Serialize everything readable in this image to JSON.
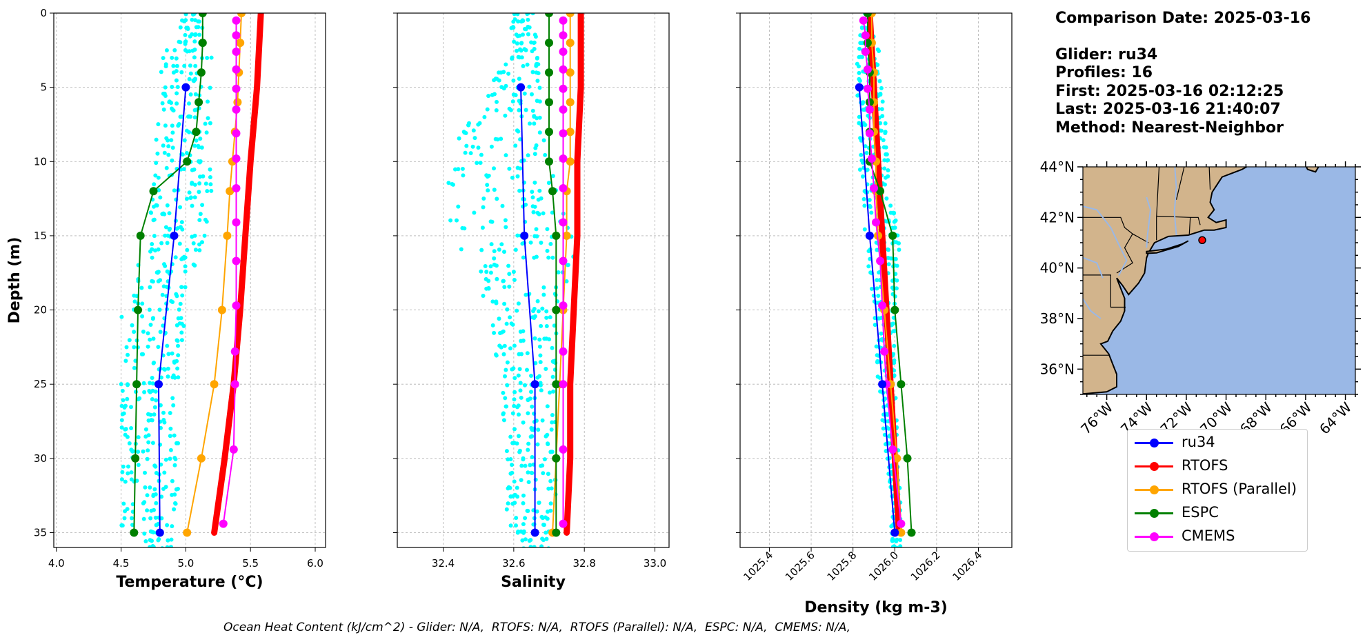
{
  "chart_data": [
    {
      "type": "line",
      "xlabel": "Temperature (°C)",
      "ylabel": "Depth (m)",
      "xlim": [
        3.98,
        6.08
      ],
      "ylim": [
        36,
        0
      ],
      "xticks": [
        "4.0",
        "4.5",
        "5.0",
        "5.5",
        "6.0"
      ],
      "yticks": [
        "0",
        "5",
        "10",
        "15",
        "20",
        "25",
        "30",
        "35"
      ],
      "grid": true,
      "glider_scatter": {
        "color": "#00ffff",
        "ranges": [
          {
            "depth": 0,
            "min": 4.98,
            "max": 5.1
          },
          {
            "depth": 3,
            "min": 4.82,
            "max": 5.2
          },
          {
            "depth": 6,
            "min": 4.78,
            "max": 5.2
          },
          {
            "depth": 10,
            "min": 4.75,
            "max": 5.2
          },
          {
            "depth": 14,
            "min": 4.72,
            "max": 5.2
          },
          {
            "depth": 18,
            "min": 4.6,
            "max": 5.05
          },
          {
            "depth": 20,
            "min": 4.5,
            "max": 5.0
          },
          {
            "depth": 25,
            "min": 4.5,
            "max": 4.95
          },
          {
            "depth": 30,
            "min": 4.5,
            "max": 4.95
          },
          {
            "depth": 34.5,
            "min": 4.5,
            "max": 4.93
          },
          {
            "depth": 36,
            "min": 4.7,
            "max": 4.9
          }
        ]
      },
      "series": [
        {
          "name": "RTOFS",
          "color": "#ff0000",
          "width": 9,
          "marker": false,
          "depth": [
            0,
            5,
            10,
            15,
            20,
            25,
            30,
            35
          ],
          "values": [
            5.58,
            5.55,
            5.5,
            5.46,
            5.42,
            5.37,
            5.3,
            5.22
          ]
        },
        {
          "name": "RTOFS (Parallel)",
          "color": "#ffa500",
          "width": 2,
          "marker": true,
          "depth": [
            0,
            2,
            4,
            6,
            8,
            10,
            12,
            15,
            20,
            25,
            30,
            35
          ],
          "values": [
            5.43,
            5.42,
            5.41,
            5.4,
            5.38,
            5.36,
            5.34,
            5.32,
            5.28,
            5.22,
            5.12,
            5.01
          ]
        },
        {
          "name": "ESPC",
          "color": "#008000",
          "width": 2,
          "marker": true,
          "depth": [
            0,
            2,
            4,
            6,
            8,
            10,
            12,
            15,
            20,
            25,
            30,
            35
          ],
          "values": [
            5.13,
            5.13,
            5.12,
            5.1,
            5.08,
            5.01,
            4.75,
            4.65,
            4.63,
            4.62,
            4.61,
            4.6
          ]
        },
        {
          "name": "CMEMS",
          "color": "#ff00ff",
          "width": 2,
          "marker": true,
          "depth": [
            0.5,
            1.5,
            2.6,
            3.8,
            5.1,
            6.5,
            8.1,
            9.8,
            11.8,
            14.1,
            16.7,
            19.7,
            22.8,
            25.0,
            29.4,
            34.4
          ],
          "values": [
            5.39,
            5.39,
            5.39,
            5.39,
            5.39,
            5.39,
            5.39,
            5.39,
            5.39,
            5.39,
            5.39,
            5.39,
            5.38,
            5.38,
            5.37,
            5.29
          ]
        },
        {
          "name": "ru34",
          "color": "#0000ff",
          "width": 2,
          "marker": true,
          "depth": [
            5,
            15,
            25,
            35
          ],
          "values": [
            5.0,
            4.91,
            4.79,
            4.8
          ]
        }
      ]
    },
    {
      "type": "line",
      "xlabel": "Salinity",
      "ylabel": "",
      "xlim": [
        32.27,
        33.04
      ],
      "ylim": [
        36,
        0
      ],
      "xticks": [
        "32.4",
        "32.6",
        "32.8",
        "33.0"
      ],
      "grid": true,
      "glider_scatter": {
        "color": "#00ffff",
        "ranges": [
          {
            "depth": 0,
            "min": 32.6,
            "max": 32.66
          },
          {
            "depth": 3,
            "min": 32.58,
            "max": 32.67
          },
          {
            "depth": 8,
            "min": 32.45,
            "max": 32.7
          },
          {
            "depth": 12,
            "min": 32.38,
            "max": 32.72
          },
          {
            "depth": 16,
            "min": 32.45,
            "max": 32.78
          },
          {
            "depth": 20,
            "min": 32.52,
            "max": 32.73
          },
          {
            "depth": 25,
            "min": 32.56,
            "max": 32.72
          },
          {
            "depth": 30,
            "min": 32.58,
            "max": 32.72
          },
          {
            "depth": 34,
            "min": 32.58,
            "max": 32.72
          },
          {
            "depth": 36,
            "min": 32.62,
            "max": 32.7
          }
        ]
      },
      "series": [
        {
          "name": "RTOFS",
          "color": "#ff0000",
          "width": 9,
          "marker": false,
          "depth": [
            0,
            5,
            10,
            15,
            20,
            25,
            30,
            35
          ],
          "values": [
            32.79,
            32.79,
            32.78,
            32.78,
            32.77,
            32.76,
            32.76,
            32.75
          ]
        },
        {
          "name": "RTOFS (Parallel)",
          "color": "#ffa500",
          "width": 2,
          "marker": true,
          "depth": [
            0,
            2,
            4,
            6,
            8,
            10,
            12,
            15,
            20,
            25,
            30,
            35
          ],
          "values": [
            32.76,
            32.76,
            32.76,
            32.76,
            32.76,
            32.76,
            32.75,
            32.75,
            32.74,
            32.73,
            32.72,
            32.71
          ]
        },
        {
          "name": "ESPC",
          "color": "#008000",
          "width": 2,
          "marker": true,
          "depth": [
            0,
            2,
            4,
            6,
            8,
            10,
            12,
            15,
            20,
            25,
            30,
            35
          ],
          "values": [
            32.7,
            32.7,
            32.7,
            32.7,
            32.7,
            32.7,
            32.71,
            32.72,
            32.72,
            32.72,
            32.72,
            32.72
          ]
        },
        {
          "name": "CMEMS",
          "color": "#ff00ff",
          "width": 2,
          "marker": true,
          "depth": [
            0.5,
            1.5,
            2.6,
            3.8,
            5.1,
            6.5,
            8.1,
            9.8,
            11.8,
            14.1,
            16.7,
            19.7,
            22.8,
            25.0,
            29.4,
            34.4
          ],
          "values": [
            32.74,
            32.74,
            32.74,
            32.74,
            32.74,
            32.74,
            32.74,
            32.74,
            32.74,
            32.74,
            32.74,
            32.74,
            32.74,
            32.74,
            32.74,
            32.74
          ]
        },
        {
          "name": "ru34",
          "color": "#0000ff",
          "width": 2,
          "marker": true,
          "depth": [
            5,
            15,
            25,
            35
          ],
          "values": [
            32.62,
            32.63,
            32.66,
            32.66
          ]
        }
      ]
    },
    {
      "type": "line",
      "xlabel": "Density (kg m-3)",
      "ylabel": "",
      "xlim": [
        1025.26,
        1026.56
      ],
      "ylim": [
        36,
        0
      ],
      "xticks": [
        "1025.4",
        "1025.6",
        "1025.8",
        "1026.0",
        "1026.2",
        "1026.4"
      ],
      "grid": true,
      "glider_scatter": {
        "color": "#00ffff",
        "ranges": [
          {
            "depth": 0,
            "min": 1025.85,
            "max": 1025.9
          },
          {
            "depth": 3,
            "min": 1025.82,
            "max": 1025.93
          },
          {
            "depth": 8,
            "min": 1025.82,
            "max": 1025.96
          },
          {
            "depth": 12,
            "min": 1025.84,
            "max": 1025.98
          },
          {
            "depth": 16,
            "min": 1025.86,
            "max": 1026.03
          },
          {
            "depth": 20,
            "min": 1025.9,
            "max": 1026.0
          },
          {
            "depth": 25,
            "min": 1025.92,
            "max": 1026.0
          },
          {
            "depth": 30,
            "min": 1025.96,
            "max": 1026.02
          },
          {
            "depth": 34,
            "min": 1025.98,
            "max": 1026.03
          },
          {
            "depth": 36,
            "min": 1025.99,
            "max": 1026.03
          }
        ]
      },
      "series": [
        {
          "name": "RTOFS",
          "color": "#ff0000",
          "width": 9,
          "marker": false,
          "depth": [
            0,
            5,
            10,
            15,
            20,
            25,
            30,
            35
          ],
          "values": [
            1025.88,
            1025.9,
            1025.92,
            1025.94,
            1025.96,
            1025.98,
            1026.0,
            1026.02
          ]
        },
        {
          "name": "RTOFS (Parallel)",
          "color": "#ffa500",
          "width": 2,
          "marker": true,
          "depth": [
            0,
            2,
            4,
            6,
            8,
            10,
            12,
            15,
            20,
            25,
            30,
            35
          ],
          "values": [
            1025.89,
            1025.89,
            1025.9,
            1025.9,
            1025.9,
            1025.91,
            1025.91,
            1025.92,
            1025.95,
            1025.98,
            1026.01,
            1026.03
          ]
        },
        {
          "name": "ESPC",
          "color": "#008000",
          "width": 2,
          "marker": true,
          "depth": [
            0,
            2,
            4,
            6,
            8,
            10,
            12,
            15,
            20,
            25,
            30,
            35
          ],
          "values": [
            1025.87,
            1025.87,
            1025.88,
            1025.88,
            1025.88,
            1025.88,
            1025.93,
            1025.99,
            1026.0,
            1026.03,
            1026.06,
            1026.08
          ]
        },
        {
          "name": "CMEMS",
          "color": "#ff00ff",
          "width": 2,
          "marker": true,
          "depth": [
            0.5,
            1.5,
            2.6,
            3.8,
            5.1,
            6.5,
            8.1,
            9.8,
            11.8,
            14.1,
            16.7,
            19.7,
            22.8,
            25.0,
            29.4,
            34.4
          ],
          "values": [
            1025.85,
            1025.86,
            1025.86,
            1025.87,
            1025.87,
            1025.88,
            1025.88,
            1025.89,
            1025.9,
            1025.91,
            1025.93,
            1025.94,
            1025.95,
            1025.96,
            1025.99,
            1026.03
          ]
        },
        {
          "name": "ru34",
          "color": "#0000ff",
          "width": 2,
          "marker": true,
          "depth": [
            5,
            15,
            25,
            35
          ],
          "values": [
            1025.83,
            1025.88,
            1025.94,
            1026.0
          ]
        }
      ]
    }
  ],
  "info": {
    "comparison_date": "Comparison Date: 2025-03-16",
    "glider": "Glider: ru34",
    "profiles": "Profiles: 16",
    "first": "First: 2025-03-16 02:12:25",
    "last": "Last: 2025-03-16 21:40:07",
    "method": "Method: Nearest-Neighbor"
  },
  "map": {
    "lat_labels": [
      "44°N",
      "42°N",
      "40°N",
      "38°N",
      "36°N"
    ],
    "lon_labels": [
      "76°W",
      "74°W",
      "72°W",
      "70°W",
      "68°W",
      "66°W",
      "64°W"
    ],
    "land_color": "#d2b48c",
    "ocean_color": "#9ab8e6",
    "marker_color": "#ff0000"
  },
  "legend": [
    {
      "label": "ru34",
      "color": "#0000ff"
    },
    {
      "label": "RTOFS",
      "color": "#ff0000"
    },
    {
      "label": "RTOFS (Parallel)",
      "color": "#ffa500"
    },
    {
      "label": "ESPC",
      "color": "#008000"
    },
    {
      "label": "CMEMS",
      "color": "#ff00ff"
    }
  ],
  "footer": "Ocean Heat Content (kJ/cm^2) - Glider: N/A,  RTOFS: N/A,  RTOFS (Parallel): N/A,  ESPC: N/A,  CMEMS: N/A,"
}
